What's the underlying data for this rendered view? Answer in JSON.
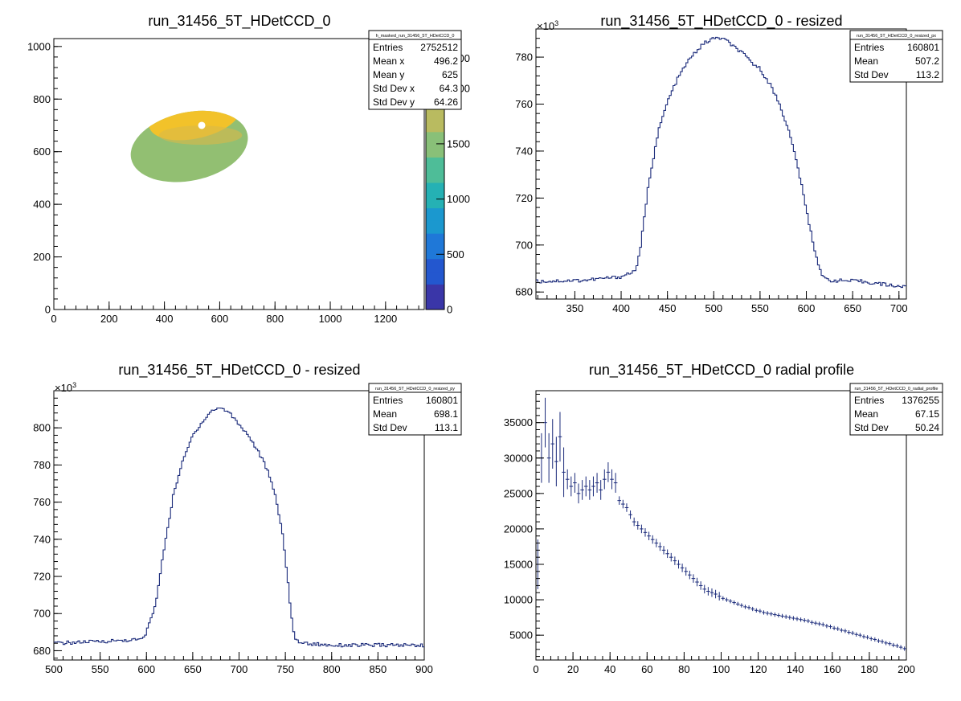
{
  "chart_data": [
    {
      "type": "heatmap",
      "title": "run_31456_5T_HDetCCD_0",
      "xlim": [
        0,
        1340
      ],
      "ylim": [
        0,
        1030
      ],
      "x_ticks": [
        "0",
        "200",
        "400",
        "600",
        "800",
        "1000",
        "1200"
      ],
      "y_ticks": [
        "0",
        "200",
        "400",
        "600",
        "800",
        "1000"
      ],
      "color_scale": {
        "zlim": [
          0,
          2300
        ],
        "ticks": [
          "0",
          "500",
          "1000",
          "1500",
          "2000",
          "2500"
        ],
        "colors": [
          "#3a36a8",
          "#2357cf",
          "#1f78d8",
          "#1b98cf",
          "#25b1b4",
          "#4ebd98",
          "#89c078",
          "#b9bb60",
          "#dcb23a",
          "#f6c731"
        ]
      },
      "blob": {
        "center": [
          490,
          620
        ],
        "radius_x": 215,
        "radius_y": 130,
        "bright_zone_color": "#f2c22a",
        "base_color": "#92bf72",
        "hole": [
          535,
          700
        ]
      },
      "stats": {
        "name": "h_masked_run_31456_5T_HDetCCD_0",
        "rows": [
          [
            "Entries",
            "2752512"
          ],
          [
            "Mean x",
            "496.2"
          ],
          [
            "Mean y",
            "625"
          ],
          [
            "Std Dev x",
            "64.3"
          ],
          [
            "Std Dev y",
            "64.26"
          ]
        ]
      }
    },
    {
      "type": "line",
      "title": "run_31456_5T_HDetCCD_0 - resized",
      "xlim": [
        308,
        708
      ],
      "ylim": [
        677,
        792
      ],
      "y_multiplier": "×10",
      "y_multiplier_exp": "3",
      "x_ticks": [
        350,
        400,
        450,
        500,
        550,
        600,
        650,
        700
      ],
      "y_ticks": [
        680,
        700,
        720,
        740,
        760,
        780
      ],
      "curve": [
        [
          308,
          684.5
        ],
        [
          360,
          685
        ],
        [
          400,
          686.5
        ],
        [
          415,
          689
        ],
        [
          420,
          696
        ],
        [
          430,
          727
        ],
        [
          440,
          748
        ],
        [
          450,
          761
        ],
        [
          460,
          770
        ],
        [
          470,
          777
        ],
        [
          480,
          782
        ],
        [
          490,
          786
        ],
        [
          500,
          788
        ],
        [
          510,
          788
        ],
        [
          520,
          785
        ],
        [
          530,
          782
        ],
        [
          540,
          778
        ],
        [
          550,
          775
        ],
        [
          560,
          769
        ],
        [
          570,
          761
        ],
        [
          580,
          750
        ],
        [
          590,
          735
        ],
        [
          600,
          715
        ],
        [
          610,
          696
        ],
        [
          618,
          686
        ],
        [
          625,
          685
        ],
        [
          660,
          684.5
        ],
        [
          708,
          682
        ]
      ],
      "stats": {
        "name": "run_31456_5T_HDetCCD_0_resized_px",
        "rows": [
          [
            "Entries",
            "160801"
          ],
          [
            "Mean",
            "507.2"
          ],
          [
            "Std Dev",
            "113.2"
          ]
        ]
      }
    },
    {
      "type": "line",
      "title": "run_31456_5T_HDetCCD_0 - resized",
      "xlim": [
        500,
        900
      ],
      "ylim": [
        675,
        820
      ],
      "y_multiplier": "×10",
      "y_multiplier_exp": "3",
      "x_ticks": [
        500,
        550,
        600,
        650,
        700,
        750,
        800,
        850,
        900
      ],
      "y_ticks": [
        680,
        700,
        720,
        740,
        760,
        780,
        800
      ],
      "curve": [
        [
          500,
          684
        ],
        [
          550,
          685
        ],
        [
          595,
          686
        ],
        [
          600,
          690
        ],
        [
          610,
          705
        ],
        [
          620,
          738
        ],
        [
          630,
          766
        ],
        [
          640,
          783
        ],
        [
          650,
          796
        ],
        [
          660,
          803
        ],
        [
          670,
          809
        ],
        [
          680,
          811
        ],
        [
          690,
          808
        ],
        [
          700,
          802
        ],
        [
          710,
          796
        ],
        [
          720,
          788
        ],
        [
          730,
          778
        ],
        [
          740,
          762
        ],
        [
          748,
          740
        ],
        [
          755,
          706
        ],
        [
          760,
          686
        ],
        [
          770,
          684
        ],
        [
          800,
          683
        ],
        [
          850,
          683
        ],
        [
          900,
          683
        ]
      ],
      "stats": {
        "name": "run_31456_5T_HDetCCD_0_resized_py",
        "rows": [
          [
            "Entries",
            "160801"
          ],
          [
            "Mean",
            "698.1"
          ],
          [
            "Std Dev",
            "113.1"
          ]
        ]
      }
    },
    {
      "type": "scatter",
      "title": "run_31456_5T_HDetCCD_0 radial profile",
      "xlim": [
        0,
        200
      ],
      "ylim": [
        1500,
        39500
      ],
      "x_ticks": [
        0,
        20,
        40,
        60,
        80,
        100,
        120,
        140,
        160,
        180,
        200
      ],
      "y_ticks": [
        5000,
        10000,
        15000,
        20000,
        25000,
        30000,
        35000
      ],
      "points": [
        [
          1,
          15000
        ],
        [
          3,
          30000
        ],
        [
          5,
          35000
        ],
        [
          7,
          30000
        ],
        [
          9,
          32000
        ],
        [
          11,
          29500
        ],
        [
          13,
          33000
        ],
        [
          15,
          28000
        ],
        [
          17,
          27000
        ],
        [
          19,
          26000
        ],
        [
          21,
          26500
        ],
        [
          23,
          25000
        ],
        [
          25,
          25500
        ],
        [
          27,
          26000
        ],
        [
          29,
          25500
        ],
        [
          31,
          26000
        ],
        [
          33,
          26500
        ],
        [
          35,
          25500
        ],
        [
          37,
          27000
        ],
        [
          39,
          28000
        ],
        [
          41,
          27000
        ],
        [
          43,
          26500
        ],
        [
          45,
          24000
        ],
        [
          47,
          23500
        ],
        [
          49,
          23000
        ],
        [
          51,
          22000
        ],
        [
          53,
          21000
        ],
        [
          55,
          20500
        ],
        [
          57,
          20000
        ],
        [
          59,
          19500
        ],
        [
          61,
          19000
        ],
        [
          63,
          18500
        ],
        [
          65,
          18000
        ],
        [
          67,
          17500
        ],
        [
          69,
          17000
        ],
        [
          71,
          16500
        ],
        [
          73,
          16000
        ],
        [
          75,
          15500
        ],
        [
          77,
          15000
        ],
        [
          79,
          14500
        ],
        [
          81,
          14000
        ],
        [
          83,
          13500
        ],
        [
          85,
          13000
        ],
        [
          87,
          12500
        ],
        [
          89,
          12000
        ],
        [
          91,
          11500
        ],
        [
          93,
          11200
        ],
        [
          95,
          11000
        ],
        [
          97,
          10800
        ],
        [
          99,
          10500
        ],
        [
          101,
          10200
        ],
        [
          103,
          10000
        ],
        [
          105,
          9800
        ],
        [
          107,
          9600
        ],
        [
          109,
          9400
        ],
        [
          111,
          9200
        ],
        [
          113,
          9000
        ],
        [
          115,
          8900
        ],
        [
          117,
          8700
        ],
        [
          119,
          8500
        ],
        [
          121,
          8400
        ],
        [
          123,
          8200
        ],
        [
          125,
          8100
        ],
        [
          127,
          8000
        ],
        [
          129,
          7900
        ],
        [
          131,
          7800
        ],
        [
          133,
          7700
        ],
        [
          135,
          7600
        ],
        [
          137,
          7500
        ],
        [
          139,
          7400
        ],
        [
          141,
          7300
        ],
        [
          143,
          7200
        ],
        [
          145,
          7100
        ],
        [
          147,
          7000
        ],
        [
          149,
          6800
        ],
        [
          151,
          6700
        ],
        [
          153,
          6600
        ],
        [
          155,
          6500
        ],
        [
          157,
          6300
        ],
        [
          159,
          6200
        ],
        [
          161,
          6000
        ],
        [
          163,
          5900
        ],
        [
          165,
          5700
        ],
        [
          167,
          5600
        ],
        [
          169,
          5400
        ],
        [
          171,
          5300
        ],
        [
          173,
          5100
        ],
        [
          175,
          5000
        ],
        [
          177,
          4800
        ],
        [
          179,
          4700
        ],
        [
          181,
          4500
        ],
        [
          183,
          4400
        ],
        [
          185,
          4200
        ],
        [
          187,
          4100
        ],
        [
          189,
          3900
        ],
        [
          191,
          3800
        ],
        [
          193,
          3600
        ],
        [
          195,
          3500
        ],
        [
          197,
          3300
        ],
        [
          199,
          3100
        ]
      ],
      "stats": {
        "name": "run_31456_5T_HDetCCD_0_radial_profile",
        "rows": [
          [
            "Entries",
            "1376255"
          ],
          [
            "Mean",
            "67.15"
          ],
          [
            "Std Dev",
            "50.24"
          ]
        ]
      }
    }
  ]
}
